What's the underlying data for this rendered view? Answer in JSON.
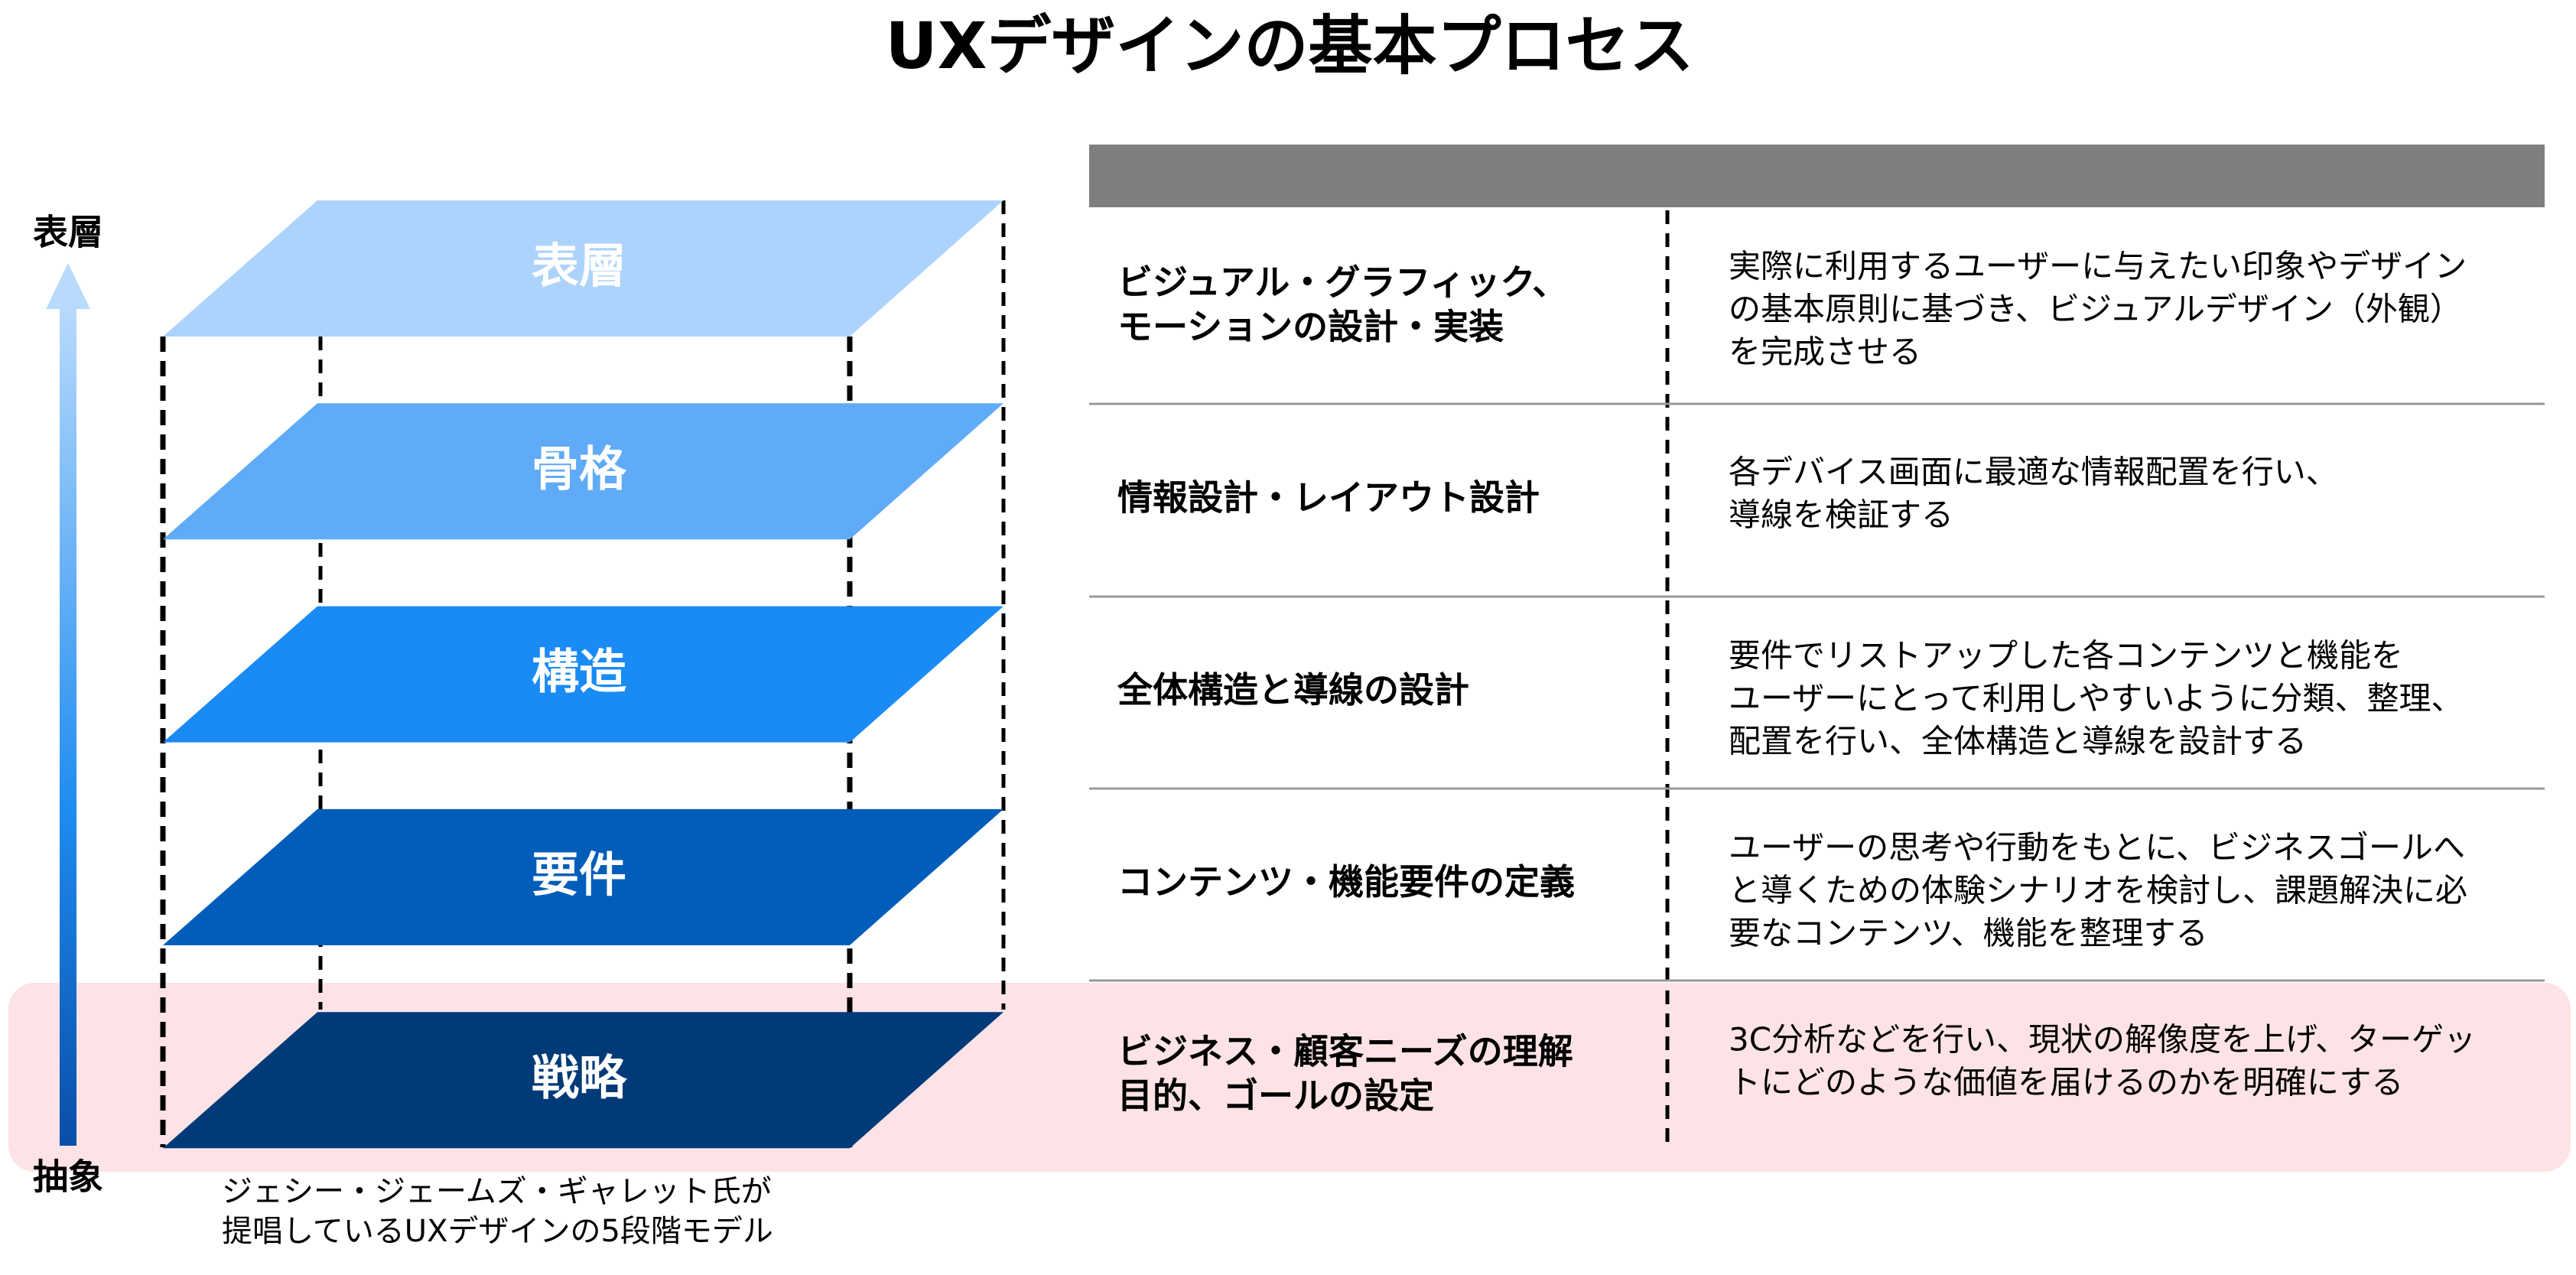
{
  "title": "UXデザインの基本プロセス",
  "axis": {
    "top": "表層",
    "bottom": "抽象"
  },
  "layers": [
    "表層",
    "骨格",
    "構造",
    "要件",
    "戦略"
  ],
  "caption": [
    "ジェシー・ジェームズ・ギャレット氏が",
    "提唱しているUXデザインの5段階モデル"
  ],
  "table": {
    "rows": [
      {
        "name": [
          "ビジュアル・グラフィック、",
          "モーションの設計・実装"
        ],
        "description": [
          "実際に利用するユーザーに与えたい印象やデザイン",
          "の基本原則に基づき、ビジュアルデザイン（外観）",
          "を完成させる"
        ]
      },
      {
        "name": [
          "情報設計・レイアウト設計"
        ],
        "description": [
          "各デバイス画面に最適な情報配置を行い、",
          "導線を検証する"
        ]
      },
      {
        "name": [
          "全体構造と導線の設計"
        ],
        "description": [
          "要件でリストアップした各コンテンツと機能を",
          "ユーザーにとって利用しやすいように分類、整理、",
          "配置を行い、全体構造と導線を設計する"
        ]
      },
      {
        "name": [
          "コンテンツ・機能要件の定義"
        ],
        "description": [
          "ユーザーの思考や行動をもとに、ビジネスゴールへ",
          "と導くための体験シナリオを検討し、課題解決に必",
          "要なコンテンツ、機能を整理する"
        ]
      },
      {
        "name": [
          "ビジネス・顧客ニーズの理解",
          "目的、ゴールの設定"
        ],
        "description": [
          "3C分析などを行い、現状の解像度を上げ、ターゲッ",
          "トにどのような価値を届けるのかを明確にする"
        ]
      }
    ]
  }
}
